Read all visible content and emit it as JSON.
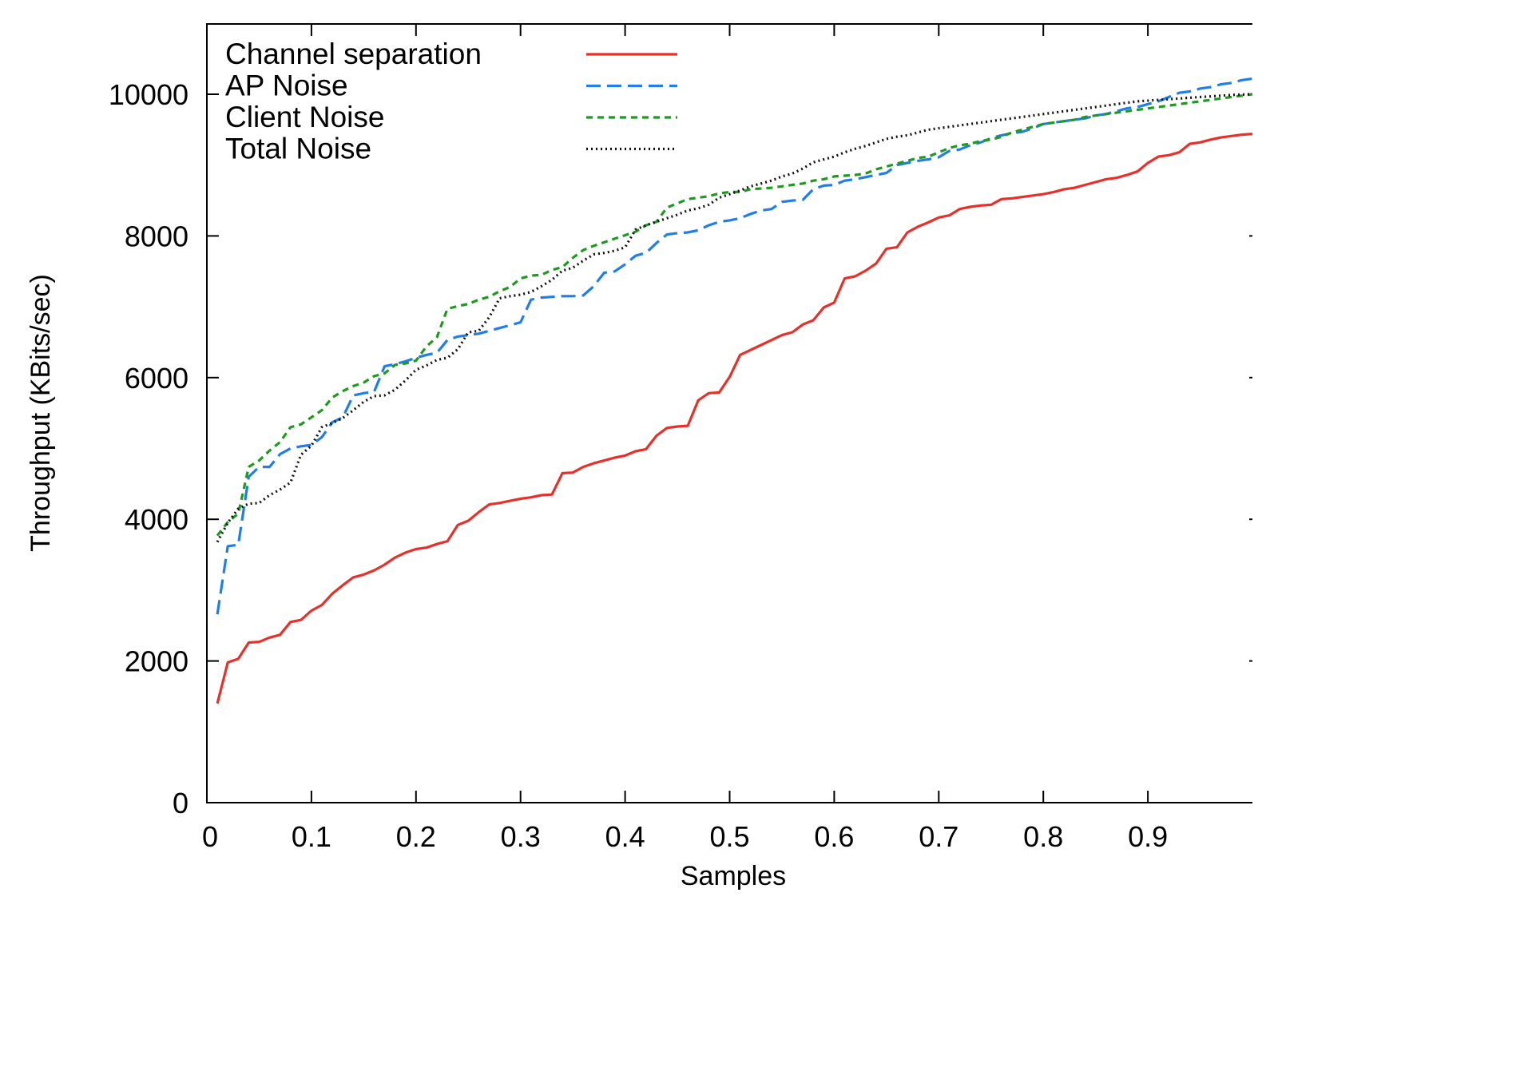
{
  "chart_data": {
    "type": "line",
    "xlabel": "Samples",
    "ylabel": "Throughput (KBits/sec)",
    "xlim": [
      0,
      1
    ],
    "ylim": [
      0,
      11000
    ],
    "x_ticks": [
      "0",
      "0.1",
      "0.2",
      "0.3",
      "0.4",
      "0.5",
      "0.6",
      "0.7",
      "0.8",
      "0.9"
    ],
    "y_ticks": [
      "0",
      "2000",
      "4000",
      "6000",
      "8000",
      "10000"
    ],
    "grid": false,
    "legend_position": "top-left",
    "series": [
      {
        "name": "Channel separation",
        "color": "#e8302a",
        "dash": "solid",
        "x": [
          0.01,
          0.02,
          0.03,
          0.04,
          0.05,
          0.06,
          0.07,
          0.08,
          0.09,
          0.1,
          0.11,
          0.12,
          0.13,
          0.14,
          0.15,
          0.16,
          0.17,
          0.18,
          0.19,
          0.2,
          0.21,
          0.22,
          0.23,
          0.24,
          0.25,
          0.26,
          0.27,
          0.28,
          0.29,
          0.3,
          0.31,
          0.32,
          0.33,
          0.34,
          0.35,
          0.36,
          0.37,
          0.38,
          0.39,
          0.4,
          0.41,
          0.42,
          0.43,
          0.44,
          0.45,
          0.46,
          0.47,
          0.48,
          0.49,
          0.5,
          0.51,
          0.52,
          0.53,
          0.54,
          0.55,
          0.56,
          0.57,
          0.58,
          0.59,
          0.6,
          0.61,
          0.62,
          0.63,
          0.64,
          0.65,
          0.66,
          0.67,
          0.68,
          0.69,
          0.7,
          0.71,
          0.72,
          0.73,
          0.74,
          0.75,
          0.76,
          0.77,
          0.78,
          0.79,
          0.8,
          0.81,
          0.82,
          0.83,
          0.84,
          0.85,
          0.86,
          0.87,
          0.88,
          0.89,
          0.9,
          0.91,
          0.92,
          0.93,
          0.94,
          0.95,
          0.96,
          0.97,
          0.98,
          0.99,
          1.0
        ],
        "values": [
          1400,
          1980,
          2030,
          2260,
          2270,
          2330,
          2370,
          2550,
          2580,
          2710,
          2790,
          2950,
          3070,
          3180,
          3220,
          3280,
          3360,
          3460,
          3530,
          3580,
          3600,
          3650,
          3690,
          3920,
          3980,
          4100,
          4210,
          4230,
          4260,
          4290,
          4310,
          4340,
          4350,
          4650,
          4660,
          4740,
          4790,
          4830,
          4870,
          4900,
          4960,
          4990,
          5180,
          5290,
          5310,
          5320,
          5680,
          5780,
          5790,
          6010,
          6320,
          6390,
          6460,
          6530,
          6600,
          6640,
          6750,
          6810,
          6990,
          7060,
          7400,
          7430,
          7510,
          7610,
          7820,
          7840,
          8050,
          8130,
          8190,
          8260,
          8290,
          8380,
          8410,
          8430,
          8440,
          8520,
          8530,
          8550,
          8570,
          8590,
          8620,
          8660,
          8680,
          8720,
          8760,
          8800,
          8820,
          8860,
          8910,
          9030,
          9120,
          9140,
          9180,
          9300,
          9320,
          9360,
          9390,
          9410,
          9430,
          9440
        ]
      },
      {
        "name": "AP Noise",
        "color": "#1f7ee8",
        "dash": "long-dash",
        "x": [
          0.01,
          0.02,
          0.03,
          0.04,
          0.05,
          0.06,
          0.07,
          0.08,
          0.09,
          0.1,
          0.11,
          0.12,
          0.13,
          0.14,
          0.15,
          0.16,
          0.17,
          0.18,
          0.19,
          0.2,
          0.21,
          0.22,
          0.23,
          0.24,
          0.25,
          0.26,
          0.27,
          0.28,
          0.29,
          0.3,
          0.31,
          0.32,
          0.33,
          0.34,
          0.35,
          0.36,
          0.37,
          0.38,
          0.39,
          0.4,
          0.41,
          0.42,
          0.43,
          0.44,
          0.45,
          0.46,
          0.47,
          0.48,
          0.49,
          0.5,
          0.51,
          0.52,
          0.53,
          0.54,
          0.55,
          0.56,
          0.57,
          0.58,
          0.59,
          0.6,
          0.61,
          0.62,
          0.63,
          0.64,
          0.65,
          0.66,
          0.67,
          0.68,
          0.69,
          0.7,
          0.71,
          0.72,
          0.73,
          0.74,
          0.75,
          0.76,
          0.77,
          0.78,
          0.79,
          0.8,
          0.81,
          0.82,
          0.83,
          0.84,
          0.85,
          0.86,
          0.87,
          0.88,
          0.89,
          0.9,
          0.91,
          0.92,
          0.93,
          0.94,
          0.95,
          0.96,
          0.97,
          0.98,
          0.99,
          1.0
        ],
        "values": [
          2660,
          3620,
          3640,
          4600,
          4740,
          4740,
          4920,
          5000,
          5030,
          5050,
          5160,
          5370,
          5440,
          5750,
          5780,
          5800,
          6160,
          6190,
          6230,
          6280,
          6320,
          6350,
          6530,
          6580,
          6600,
          6620,
          6660,
          6700,
          6740,
          6780,
          7100,
          7130,
          7140,
          7150,
          7150,
          7160,
          7290,
          7480,
          7500,
          7600,
          7720,
          7760,
          7900,
          8020,
          8040,
          8050,
          8080,
          8150,
          8200,
          8220,
          8250,
          8310,
          8360,
          8380,
          8480,
          8500,
          8510,
          8660,
          8710,
          8720,
          8780,
          8800,
          8830,
          8860,
          8890,
          9000,
          9030,
          9060,
          9080,
          9110,
          9200,
          9220,
          9280,
          9320,
          9380,
          9420,
          9450,
          9470,
          9520,
          9580,
          9600,
          9620,
          9640,
          9660,
          9700,
          9720,
          9760,
          9800,
          9820,
          9860,
          9900,
          9960,
          10020,
          10040,
          10080,
          10100,
          10140,
          10160,
          10200,
          10220
        ]
      },
      {
        "name": "Client Noise",
        "color": "#1e9a1e",
        "dash": "short-dash",
        "x": [
          0.01,
          0.02,
          0.03,
          0.04,
          0.05,
          0.06,
          0.07,
          0.08,
          0.09,
          0.1,
          0.11,
          0.12,
          0.13,
          0.14,
          0.15,
          0.16,
          0.17,
          0.18,
          0.19,
          0.2,
          0.21,
          0.22,
          0.23,
          0.24,
          0.25,
          0.26,
          0.27,
          0.28,
          0.29,
          0.3,
          0.31,
          0.32,
          0.33,
          0.34,
          0.35,
          0.36,
          0.37,
          0.38,
          0.39,
          0.4,
          0.41,
          0.42,
          0.43,
          0.44,
          0.45,
          0.46,
          0.47,
          0.48,
          0.49,
          0.5,
          0.51,
          0.52,
          0.53,
          0.54,
          0.55,
          0.56,
          0.57,
          0.58,
          0.59,
          0.6,
          0.61,
          0.62,
          0.63,
          0.64,
          0.65,
          0.66,
          0.67,
          0.68,
          0.69,
          0.7,
          0.71,
          0.72,
          0.73,
          0.74,
          0.75,
          0.76,
          0.77,
          0.78,
          0.79,
          0.8,
          0.81,
          0.82,
          0.83,
          0.84,
          0.85,
          0.86,
          0.87,
          0.88,
          0.89,
          0.9,
          0.91,
          0.92,
          0.93,
          0.94,
          0.95,
          0.96,
          0.97,
          0.98,
          0.99,
          1.0
        ],
        "values": [
          3770,
          3960,
          4080,
          4740,
          4830,
          4970,
          5090,
          5300,
          5340,
          5440,
          5540,
          5720,
          5810,
          5880,
          5930,
          6020,
          6060,
          6180,
          6200,
          6240,
          6440,
          6570,
          6970,
          7010,
          7040,
          7100,
          7140,
          7220,
          7280,
          7400,
          7440,
          7450,
          7520,
          7560,
          7690,
          7800,
          7860,
          7910,
          7960,
          8010,
          8060,
          8150,
          8200,
          8400,
          8460,
          8520,
          8540,
          8560,
          8600,
          8620,
          8620,
          8660,
          8670,
          8680,
          8700,
          8720,
          8740,
          8780,
          8800,
          8840,
          8850,
          8860,
          8880,
          8940,
          8980,
          9020,
          9060,
          9100,
          9120,
          9180,
          9240,
          9280,
          9300,
          9340,
          9360,
          9400,
          9460,
          9500,
          9540,
          9580,
          9600,
          9620,
          9640,
          9680,
          9700,
          9720,
          9740,
          9760,
          9780,
          9800,
          9820,
          9840,
          9860,
          9880,
          9900,
          9920,
          9940,
          9960,
          9980,
          10000
        ]
      },
      {
        "name": "Total Noise",
        "color": "#111111",
        "dash": "dotted",
        "x": [
          0.01,
          0.02,
          0.03,
          0.04,
          0.05,
          0.06,
          0.07,
          0.08,
          0.09,
          0.1,
          0.11,
          0.12,
          0.13,
          0.14,
          0.15,
          0.16,
          0.17,
          0.18,
          0.19,
          0.2,
          0.21,
          0.22,
          0.23,
          0.24,
          0.25,
          0.26,
          0.27,
          0.28,
          0.29,
          0.3,
          0.31,
          0.32,
          0.33,
          0.34,
          0.35,
          0.36,
          0.37,
          0.38,
          0.39,
          0.4,
          0.41,
          0.42,
          0.43,
          0.44,
          0.45,
          0.46,
          0.47,
          0.48,
          0.49,
          0.5,
          0.51,
          0.52,
          0.53,
          0.54,
          0.55,
          0.56,
          0.57,
          0.58,
          0.59,
          0.6,
          0.61,
          0.62,
          0.63,
          0.64,
          0.65,
          0.66,
          0.67,
          0.68,
          0.69,
          0.7,
          0.71,
          0.72,
          0.73,
          0.74,
          0.75,
          0.76,
          0.77,
          0.78,
          0.79,
          0.8,
          0.81,
          0.82,
          0.83,
          0.84,
          0.85,
          0.86,
          0.87,
          0.88,
          0.89,
          0.9,
          0.91,
          0.92,
          0.93,
          0.94,
          0.95,
          0.96,
          0.97,
          0.98,
          0.99,
          1.0
        ],
        "values": [
          3680,
          3950,
          4150,
          4220,
          4230,
          4340,
          4420,
          4520,
          4910,
          5040,
          5300,
          5360,
          5430,
          5540,
          5660,
          5740,
          5750,
          5830,
          5960,
          6110,
          6170,
          6250,
          6280,
          6400,
          6640,
          6660,
          6850,
          7120,
          7150,
          7170,
          7210,
          7290,
          7380,
          7510,
          7550,
          7650,
          7740,
          7760,
          7790,
          7840,
          8090,
          8150,
          8200,
          8250,
          8300,
          8360,
          8390,
          8440,
          8540,
          8590,
          8640,
          8700,
          8740,
          8780,
          8840,
          8880,
          8950,
          9040,
          9080,
          9120,
          9180,
          9230,
          9270,
          9320,
          9370,
          9400,
          9420,
          9460,
          9500,
          9520,
          9540,
          9560,
          9580,
          9600,
          9620,
          9640,
          9660,
          9680,
          9700,
          9720,
          9740,
          9760,
          9780,
          9800,
          9820,
          9840,
          9860,
          9880,
          9900,
          9910,
          9920,
          9930,
          9940,
          9950,
          9960,
          9970,
          9980,
          9990,
          9995,
          10000
        ]
      }
    ]
  }
}
